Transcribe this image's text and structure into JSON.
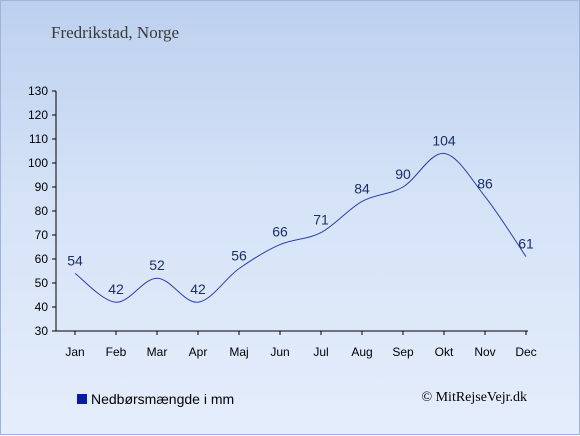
{
  "header": {
    "title": "Fredrikstad, Norge"
  },
  "legend": {
    "label": "Nedbørsmængde i mm",
    "color": "#0a1aa6"
  },
  "footer": {
    "copyright": "© MitRejseVejr.dk"
  },
  "chart_data": {
    "type": "line",
    "categories": [
      "Jan",
      "Feb",
      "Mar",
      "Apr",
      "Maj",
      "Jun",
      "Jul",
      "Aug",
      "Sep",
      "Okt",
      "Nov",
      "Dec"
    ],
    "values": [
      54,
      42,
      52,
      42,
      56,
      66,
      71,
      84,
      90,
      104,
      86,
      61
    ],
    "ylim": [
      30,
      130
    ],
    "yticks": [
      30,
      40,
      50,
      60,
      70,
      80,
      90,
      100,
      110,
      120,
      130
    ],
    "line_color": "#2b3fa8",
    "grid": false,
    "legend_position": "bottom-left"
  }
}
